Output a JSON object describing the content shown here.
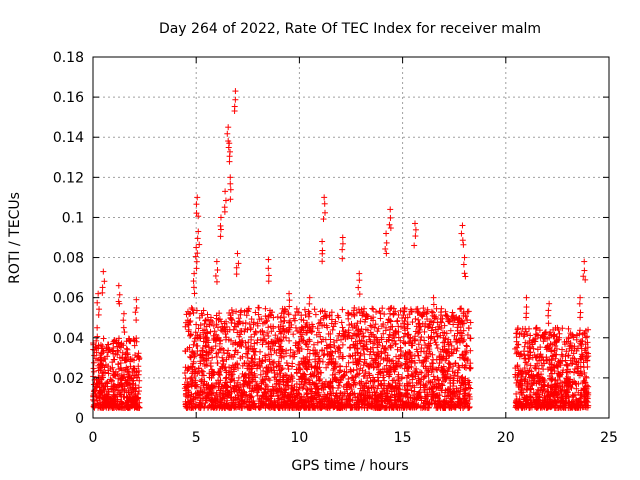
{
  "chart_data": {
    "type": "scatter",
    "title": "Day 264 of 2022, Rate Of TEC Index for receiver malm",
    "xlabel": "GPS time / hours",
    "ylabel": "ROTI / TECUs",
    "xlim": [
      0,
      25
    ],
    "ylim": [
      0,
      0.18
    ],
    "xticks": [
      0,
      5,
      10,
      15,
      20,
      25
    ],
    "xtick_labels": [
      "0",
      "5",
      "10",
      "15",
      "20",
      "25"
    ],
    "yticks": [
      0,
      0.02,
      0.04,
      0.06,
      0.08,
      0.1,
      0.12,
      0.14,
      0.16,
      0.18
    ],
    "ytick_labels": [
      "0",
      "0.02",
      "0.04",
      "0.06",
      "0.08",
      "0.1",
      "0.12",
      "0.14",
      "0.16",
      "0.18"
    ],
    "grid": true,
    "marker": "+",
    "color": "#ff0000",
    "series": [
      {
        "name": "ROTI",
        "points": [
          {
            "x": 0.1,
            "y": 0.012
          },
          {
            "x": 0.2,
            "y": 0.045
          },
          {
            "x": 0.25,
            "y": 0.062
          },
          {
            "x": 0.5,
            "y": 0.073
          },
          {
            "x": 0.7,
            "y": 0.018
          },
          {
            "x": 1.0,
            "y": 0.016
          },
          {
            "x": 1.25,
            "y": 0.066
          },
          {
            "x": 1.5,
            "y": 0.052
          },
          {
            "x": 1.8,
            "y": 0.02
          },
          {
            "x": 2.1,
            "y": 0.059
          },
          {
            "x": 4.6,
            "y": 0.053
          },
          {
            "x": 4.9,
            "y": 0.072
          },
          {
            "x": 5.0,
            "y": 0.085
          },
          {
            "x": 5.05,
            "y": 0.11
          },
          {
            "x": 5.1,
            "y": 0.093
          },
          {
            "x": 5.5,
            "y": 0.04
          },
          {
            "x": 6.0,
            "y": 0.078
          },
          {
            "x": 6.2,
            "y": 0.1
          },
          {
            "x": 6.4,
            "y": 0.113
          },
          {
            "x": 6.55,
            "y": 0.145
          },
          {
            "x": 6.6,
            "y": 0.137
          },
          {
            "x": 6.65,
            "y": 0.12
          },
          {
            "x": 6.9,
            "y": 0.163
          },
          {
            "x": 7.0,
            "y": 0.082
          },
          {
            "x": 7.5,
            "y": 0.03
          },
          {
            "x": 8.0,
            "y": 0.055
          },
          {
            "x": 8.5,
            "y": 0.079
          },
          {
            "x": 9.5,
            "y": 0.062
          },
          {
            "x": 10.5,
            "y": 0.06
          },
          {
            "x": 11.2,
            "y": 0.11
          },
          {
            "x": 11.1,
            "y": 0.088
          },
          {
            "x": 12.1,
            "y": 0.09
          },
          {
            "x": 12.9,
            "y": 0.072
          },
          {
            "x": 14.2,
            "y": 0.092
          },
          {
            "x": 14.4,
            "y": 0.104
          },
          {
            "x": 15.6,
            "y": 0.097
          },
          {
            "x": 16.5,
            "y": 0.06
          },
          {
            "x": 17.9,
            "y": 0.096
          },
          {
            "x": 18.0,
            "y": 0.08
          },
          {
            "x": 20.5,
            "y": 0.012
          },
          {
            "x": 21.0,
            "y": 0.06
          },
          {
            "x": 22.1,
            "y": 0.057
          },
          {
            "x": 22.5,
            "y": 0.045
          },
          {
            "x": 23.6,
            "y": 0.06
          },
          {
            "x": 23.8,
            "y": 0.078
          },
          {
            "x": 23.9,
            "y": 0.02
          }
        ],
        "dense_bands": [
          {
            "x0": 0.0,
            "x1": 2.25,
            "y_min": 0.005,
            "y_max": 0.04
          },
          {
            "x0": 4.45,
            "x1": 18.3,
            "y_min": 0.005,
            "y_max": 0.055
          },
          {
            "x0": 20.45,
            "x1": 24.0,
            "y_min": 0.005,
            "y_max": 0.045
          }
        ]
      }
    ]
  }
}
